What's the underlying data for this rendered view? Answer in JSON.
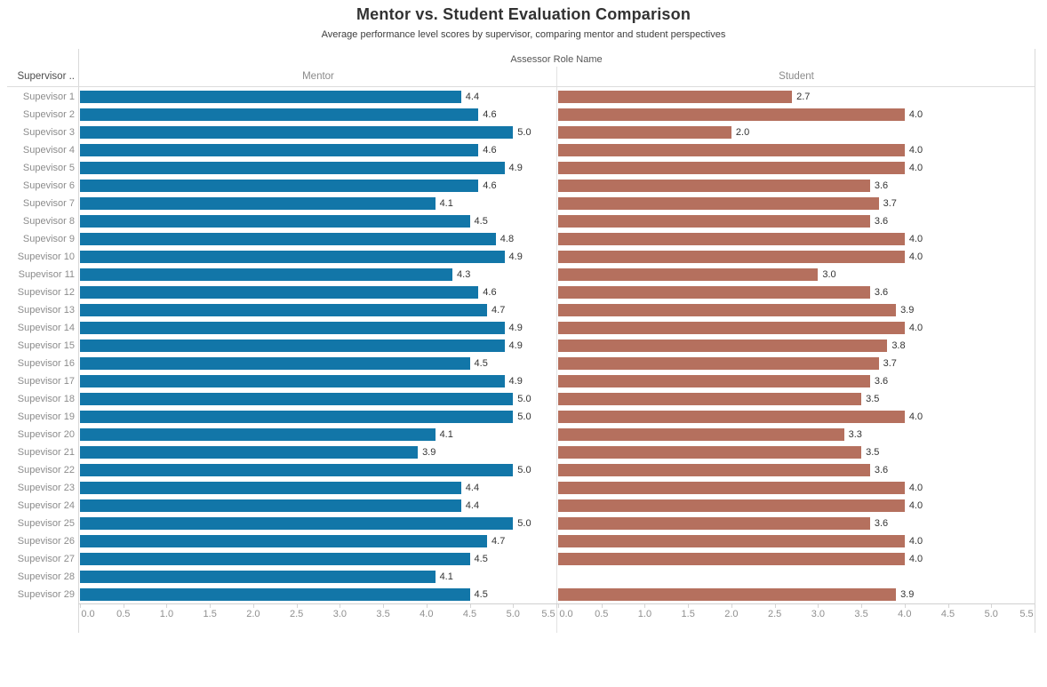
{
  "chart_data": {
    "type": "bar",
    "orientation": "horizontal",
    "title": "Mentor vs. Student Evaluation Comparison",
    "subtitle": "Average performance level scores by supervisor, comparing mentor and student perspectives",
    "column_field": "Assessor Role Name",
    "row_field": "Supervisor ..",
    "xlim": [
      0,
      5.5
    ],
    "ticks": [
      "0.0",
      "0.5",
      "1.0",
      "1.5",
      "2.0",
      "2.5",
      "3.0",
      "3.5",
      "4.0",
      "4.5",
      "5.0",
      "5.5"
    ],
    "grid": "off",
    "value_labels": "on",
    "categories": [
      "Supevisor 1",
      "Supevisor 2",
      "Supevisor 3",
      "Supevisor 4",
      "Supevisor 5",
      "Supevisor 6",
      "Supevisor 7",
      "Supevisor 8",
      "Supevisor 9",
      "Supevisor 10",
      "Supevisor 11",
      "Supevisor 12",
      "Supevisor 13",
      "Supevisor 14",
      "Supevisor 15",
      "Supevisor 16",
      "Supevisor 17",
      "Supevisor 18",
      "Supevisor 19",
      "Supevisor 20",
      "Supevisor 21",
      "Supevisor 22",
      "Supevisor 23",
      "Supevisor 24",
      "Supevisor 25",
      "Supevisor 26",
      "Supevisor 27",
      "Supevisor 28",
      "Supevisor 29"
    ],
    "series": [
      {
        "name": "Mentor",
        "color": "#1276a8",
        "values": [
          4.4,
          4.6,
          5.0,
          4.6,
          4.9,
          4.6,
          4.1,
          4.5,
          4.8,
          4.9,
          4.3,
          4.6,
          4.7,
          4.9,
          4.9,
          4.5,
          4.9,
          5.0,
          5.0,
          4.1,
          3.9,
          5.0,
          4.4,
          4.4,
          5.0,
          4.7,
          4.5,
          4.1,
          4.5
        ]
      },
      {
        "name": "Student",
        "color": "#b5705e",
        "values": [
          2.7,
          4.0,
          2.0,
          4.0,
          4.0,
          3.6,
          3.7,
          3.6,
          4.0,
          4.0,
          3.0,
          3.6,
          3.9,
          4.0,
          3.8,
          3.7,
          3.6,
          3.5,
          4.0,
          3.3,
          3.5,
          3.6,
          4.0,
          4.0,
          3.6,
          4.0,
          4.0,
          null,
          3.9
        ]
      }
    ]
  }
}
